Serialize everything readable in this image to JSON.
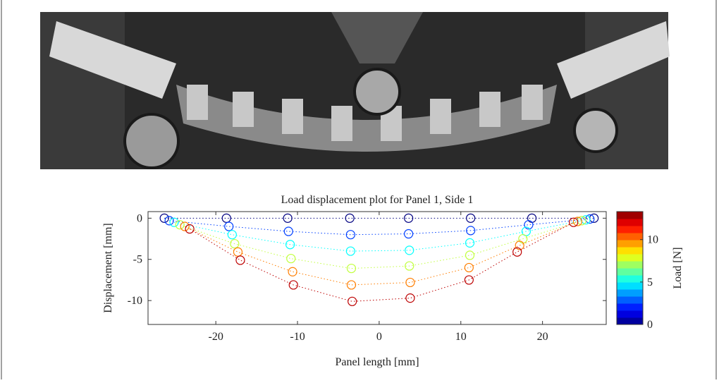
{
  "chart_data": {
    "type": "scatter",
    "title": "Load displacement plot for Panel 1, Side 1",
    "x_label": "Panel length [mm]",
    "y_label": "Displacement [mm]",
    "colorbar_label": "Load [N]",
    "colormap": "jet",
    "clim": [
      0,
      13.3
    ],
    "colorbar_ticks": [
      0,
      5,
      10
    ],
    "xlim": [
      -28.3,
      27.8
    ],
    "ylim": [
      -12.9,
      0.8
    ],
    "xticks": [
      -20,
      -10,
      0,
      10,
      20
    ],
    "yticks": [
      -10,
      -5,
      0
    ],
    "series": [
      {
        "load": 0,
        "x": [
          -26.3,
          -18.7,
          -11.2,
          -3.6,
          3.6,
          11.2,
          18.7,
          26.3
        ],
        "y": [
          0,
          0,
          0,
          0,
          0,
          0,
          0,
          0
        ]
      },
      {
        "load": 2.5,
        "x": [
          -25.7,
          -18.4,
          -11.1,
          -3.5,
          3.6,
          11.2,
          18.3,
          25.8
        ],
        "y": [
          -0.3,
          -1.0,
          -1.6,
          -2.0,
          -1.9,
          -1.5,
          -0.8,
          -0.1
        ]
      },
      {
        "load": 5,
        "x": [
          -25.1,
          -18.0,
          -10.9,
          -3.5,
          3.7,
          11.1,
          18.0,
          25.3
        ],
        "y": [
          -0.5,
          -2.0,
          -3.2,
          -4.0,
          -3.9,
          -3.0,
          -1.6,
          -0.2
        ]
      },
      {
        "load": 7.5,
        "x": [
          -24.4,
          -17.7,
          -10.8,
          -3.4,
          3.7,
          11.1,
          17.6,
          24.8
        ],
        "y": [
          -0.8,
          -3.1,
          -4.9,
          -6.1,
          -5.8,
          -4.5,
          -2.5,
          -0.3
        ]
      },
      {
        "load": 10,
        "x": [
          -23.8,
          -17.3,
          -10.6,
          -3.4,
          3.8,
          11.0,
          17.2,
          24.3
        ],
        "y": [
          -1.0,
          -4.1,
          -6.5,
          -8.1,
          -7.8,
          -6.0,
          -3.3,
          -0.4
        ]
      },
      {
        "load": 12.5,
        "x": [
          -23.2,
          -17.0,
          -10.5,
          -3.3,
          3.8,
          11.0,
          16.9,
          23.8
        ],
        "y": [
          -1.3,
          -5.1,
          -8.1,
          -10.1,
          -9.7,
          -7.5,
          -4.1,
          -0.5
        ]
      }
    ]
  }
}
